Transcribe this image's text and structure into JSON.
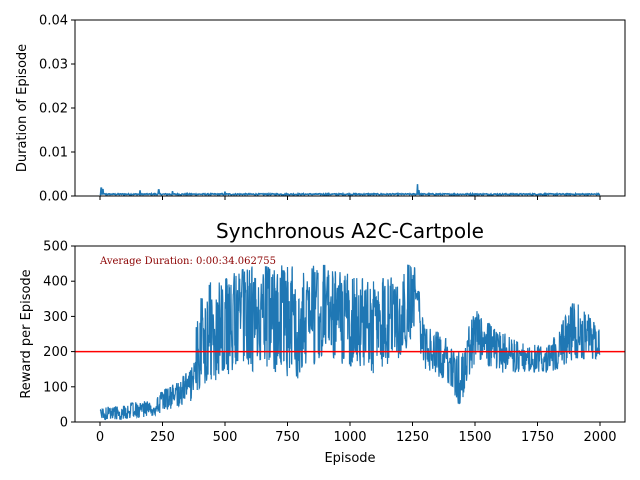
{
  "chart_data": [
    {
      "type": "line",
      "title": "",
      "xlabel": "",
      "ylabel": "Duration of Episode",
      "xlim": [
        -100,
        2100
      ],
      "ylim": [
        0.0,
        0.04
      ],
      "xticks": [
        0,
        250,
        500,
        750,
        1000,
        1250,
        1500,
        1750,
        2000
      ],
      "xtick_labels_visible": false,
      "yticks": [
        0.0,
        0.01,
        0.02,
        0.03,
        0.04
      ],
      "ytick_labels": [
        "0.00",
        "0.01",
        "0.02",
        "0.03",
        "0.04"
      ],
      "series_color": "#1f77b4",
      "series": [
        {
          "baseline": 0.0004,
          "noise": 0.00015,
          "spikes": [
            {
              "x": 5,
              "y": 0.0018
            },
            {
              "x": 12,
              "y": 0.0016
            },
            {
              "x": 160,
              "y": 0.0013
            },
            {
              "x": 235,
              "y": 0.0014
            },
            {
              "x": 290,
              "y": 0.0011
            },
            {
              "x": 500,
              "y": 0.001
            },
            {
              "x": 1270,
              "y": 0.0027
            },
            {
              "x": 1275,
              "y": 0.0012
            }
          ],
          "x_range": [
            0,
            2000
          ]
        }
      ]
    },
    {
      "type": "line",
      "title": "Synchronous A2C-Cartpole",
      "xlabel": "Episode",
      "ylabel": "Reward per Episode",
      "xlim": [
        -100,
        2100
      ],
      "ylim": [
        0,
        500
      ],
      "xticks": [
        0,
        250,
        500,
        750,
        1000,
        1250,
        1500,
        1750,
        2000
      ],
      "xtick_labels": [
        "0",
        "250",
        "500",
        "750",
        "1000",
        "1250",
        "1500",
        "1750",
        "2000"
      ],
      "yticks": [
        0,
        100,
        200,
        300,
        400,
        500
      ],
      "ytick_labels": [
        "0",
        "100",
        "200",
        "300",
        "400",
        "500"
      ],
      "annotation": "Average Duration: 0:00:34.062755",
      "annotation_color": "#8b0000",
      "threshold": {
        "y": 200,
        "color": "#ff0000"
      },
      "series_color": "#1f77b4",
      "series": [
        {
          "trend": [
            {
              "x": 0,
              "low": 5,
              "high": 40
            },
            {
              "x": 100,
              "low": 8,
              "high": 50
            },
            {
              "x": 200,
              "low": 15,
              "high": 65
            },
            {
              "x": 300,
              "low": 40,
              "high": 110
            },
            {
              "x": 370,
              "low": 60,
              "high": 160
            },
            {
              "x": 400,
              "low": 100,
              "high": 380
            },
            {
              "x": 500,
              "low": 130,
              "high": 420
            },
            {
              "x": 650,
              "low": 150,
              "high": 450
            },
            {
              "x": 800,
              "low": 120,
              "high": 440
            },
            {
              "x": 900,
              "low": 200,
              "high": 450
            },
            {
              "x": 1000,
              "low": 150,
              "high": 420
            },
            {
              "x": 1100,
              "low": 130,
              "high": 400
            },
            {
              "x": 1200,
              "low": 180,
              "high": 450
            },
            {
              "x": 1260,
              "low": 250,
              "high": 450
            },
            {
              "x": 1300,
              "low": 150,
              "high": 280
            },
            {
              "x": 1400,
              "low": 110,
              "high": 230
            },
            {
              "x": 1440,
              "low": 40,
              "high": 200
            },
            {
              "x": 1500,
              "low": 170,
              "high": 320
            },
            {
              "x": 1600,
              "low": 140,
              "high": 260
            },
            {
              "x": 1700,
              "low": 140,
              "high": 220
            },
            {
              "x": 1800,
              "low": 140,
              "high": 220
            },
            {
              "x": 1900,
              "low": 180,
              "high": 350
            },
            {
              "x": 2000,
              "low": 180,
              "high": 270
            }
          ],
          "x_range": [
            0,
            2000
          ]
        }
      ]
    }
  ]
}
